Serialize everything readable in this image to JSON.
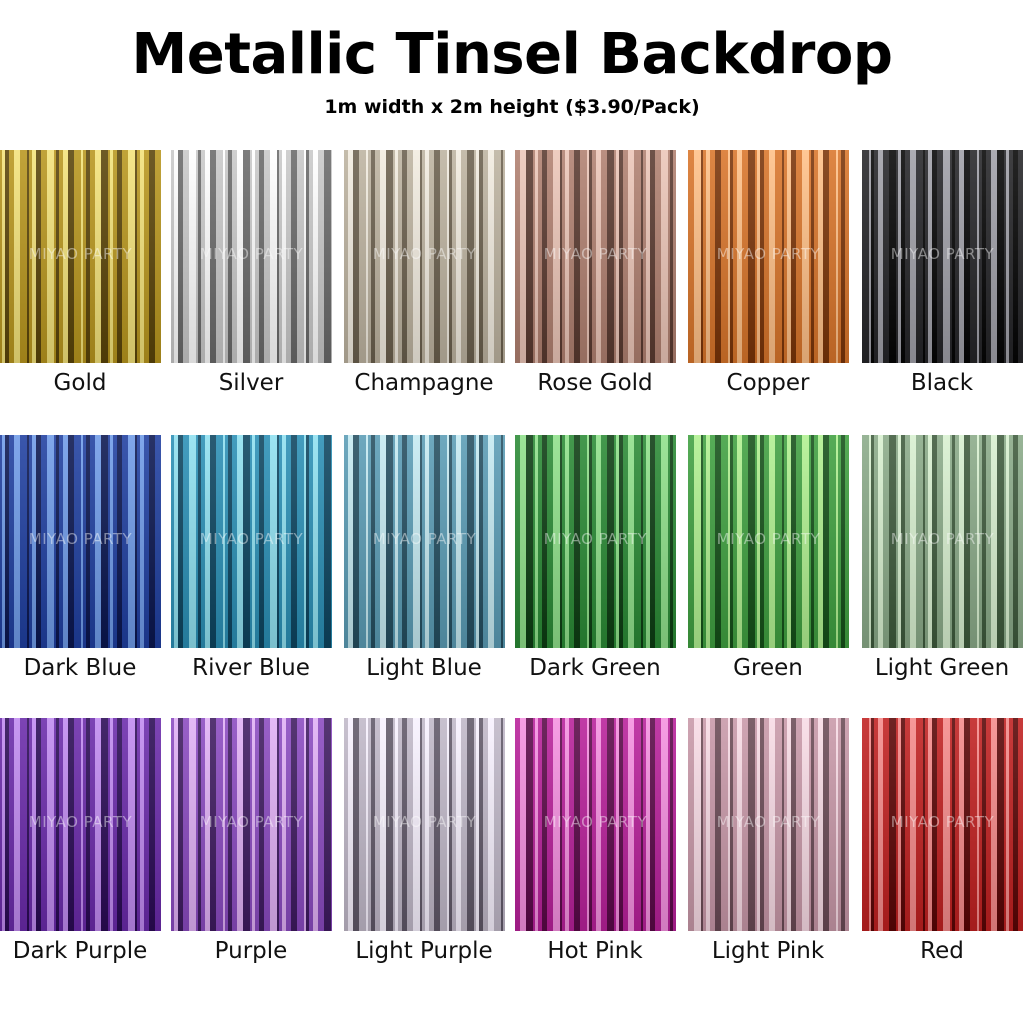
{
  "title": "Metallic Tinsel Backdrop",
  "subtitle": "1m width x 2m height ($3.90/Pack)",
  "watermark": "MIYAO PARTY",
  "colors": [
    {
      "label": "Gold",
      "base": "#b8961e",
      "light": "#f3e27a",
      "dark": "#5a4408"
    },
    {
      "label": "Silver",
      "base": "#c9c9c9",
      "light": "#ffffff",
      "dark": "#6a6a6a"
    },
    {
      "label": "Champagne",
      "base": "#bdb3a0",
      "light": "#f2ece0",
      "dark": "#6b604e"
    },
    {
      "label": "Rose Gold",
      "base": "#b08070",
      "light": "#ecc6b8",
      "dark": "#5a3a30"
    },
    {
      "label": "Copper",
      "base": "#d9752a",
      "light": "#ffc087",
      "dark": "#7a3408"
    },
    {
      "label": "Black",
      "base": "#252528",
      "light": "#a0a0a8",
      "dark": "#050505"
    },
    {
      "label": "Dark Blue",
      "base": "#1f3fa0",
      "light": "#6f9be8",
      "dark": "#0a1650"
    },
    {
      "label": "River Blue",
      "base": "#2a8fb5",
      "light": "#8fe0f0",
      "dark": "#0c4560"
    },
    {
      "label": "Light Blue",
      "base": "#5a9cb5",
      "light": "#c5eaf2",
      "dark": "#244e60"
    },
    {
      "label": "Dark Green",
      "base": "#2a8a35",
      "light": "#8fe08a",
      "dark": "#0c3d12"
    },
    {
      "label": "Green",
      "base": "#3fa040",
      "light": "#b0f090",
      "dark": "#145018"
    },
    {
      "label": "Light Green",
      "base": "#8aaa88",
      "light": "#d8f0d0",
      "dark": "#3e5a3c"
    },
    {
      "label": "Dark Purple",
      "base": "#6a2aaa",
      "light": "#c08af0",
      "dark": "#2a0a55"
    },
    {
      "label": "Purple",
      "base": "#8a4ac0",
      "light": "#e0b0f5",
      "dark": "#3e1a60"
    },
    {
      "label": "Light Purple",
      "base": "#c0b8c8",
      "light": "#f8f2ff",
      "dark": "#605868"
    },
    {
      "label": "Hot Pink",
      "base": "#b8209a",
      "light": "#f590e0",
      "dark": "#5a0848"
    },
    {
      "label": "Light Pink",
      "base": "#c898a8",
      "light": "#f8dbe5",
      "dark": "#6a4a55"
    },
    {
      "label": "Red",
      "base": "#c02020",
      "light": "#f58a8a",
      "dark": "#5a0505"
    }
  ]
}
